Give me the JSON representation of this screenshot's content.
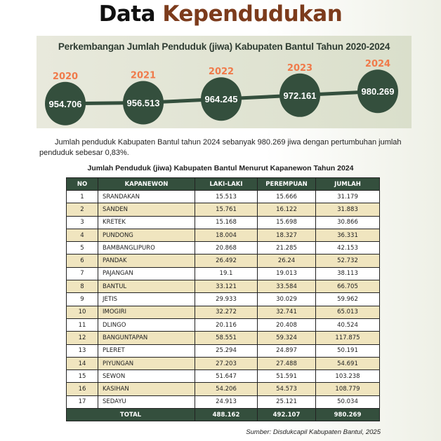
{
  "title": {
    "part1": "Data",
    "part2": "Kependudukan"
  },
  "panel_title": "Perkembangan Jumlah Penduduk (jiwa) Kabupaten Bantul Tahun 2020-2024",
  "chart_data": {
    "type": "line",
    "title": "Perkembangan Jumlah Penduduk (jiwa) Kabupaten Bantul Tahun 2020-2024",
    "categories": [
      "2020",
      "2021",
      "2022",
      "2023",
      "2024"
    ],
    "labels": [
      "954.706",
      "956.513",
      "964.245",
      "972.161",
      "980.269"
    ],
    "values": [
      954706,
      956513,
      964245,
      972161,
      980269
    ]
  },
  "paragraph": "Jumlah penduduk Kabupaten Bantul tahun 2024 sebanyak 980.269 jiwa dengan pertumbuhan jumlah penduduk sebesar 0,83%.",
  "table_title": "Jumlah Penduduk (jiwa) Kabupaten Bantul Menurut Kapanewon Tahun 2024",
  "table": {
    "headers": [
      "NO",
      "KAPANEWON",
      "LAKI-LAKI",
      "PEREMPUAN",
      "JUMLAH"
    ],
    "rows": [
      [
        "1",
        "SRANDAKAN",
        "15.513",
        "15.666",
        "31.179"
      ],
      [
        "2",
        "SANDEN",
        "15.761",
        "16.122",
        "31.883"
      ],
      [
        "3",
        "KRETEK",
        "15.168",
        "15.698",
        "30.866"
      ],
      [
        "4",
        "PUNDONG",
        "18.004",
        "18.327",
        "36.331"
      ],
      [
        "5",
        "BAMBANGLIPURO",
        "20.868",
        "21.285",
        "42.153"
      ],
      [
        "6",
        "PANDAK",
        "26.492",
        "26.24",
        "52.732"
      ],
      [
        "7",
        "PAJANGAN",
        "19.1",
        "19.013",
        "38.113"
      ],
      [
        "8",
        "BANTUL",
        "33.121",
        "33.584",
        "66.705"
      ],
      [
        "9",
        "JETIS",
        "29.933",
        "30.029",
        "59.962"
      ],
      [
        "10",
        "IMOGIRI",
        "32.272",
        "32.741",
        "65.013"
      ],
      [
        "11",
        "DLINGO",
        "20.116",
        "20.408",
        "40.524"
      ],
      [
        "12",
        "BANGUNTAPAN",
        "58.551",
        "59.324",
        "117.875"
      ],
      [
        "13",
        "PLERET",
        "25.294",
        "24.897",
        "50.191"
      ],
      [
        "14",
        "PIYUNGAN",
        "27.203",
        "27.488",
        "54.691"
      ],
      [
        "15",
        "SEWON",
        "51.647",
        "51.591",
        "103.238"
      ],
      [
        "16",
        "KASIHAN",
        "54.206",
        "54.573",
        "108.779"
      ],
      [
        "17",
        "SEDAYU",
        "24.913",
        "25.121",
        "50.034"
      ]
    ],
    "total": [
      "TOTAL",
      "488.162",
      "492.107",
      "980.269"
    ]
  },
  "source": "Sumber: Disdukcapil Kabupaten Bantul, 2025",
  "colors": {
    "dark_green": "#344f3d",
    "orange": "#f07a4a",
    "brown": "#7c3b1c",
    "beige": "#f0e5bf"
  }
}
